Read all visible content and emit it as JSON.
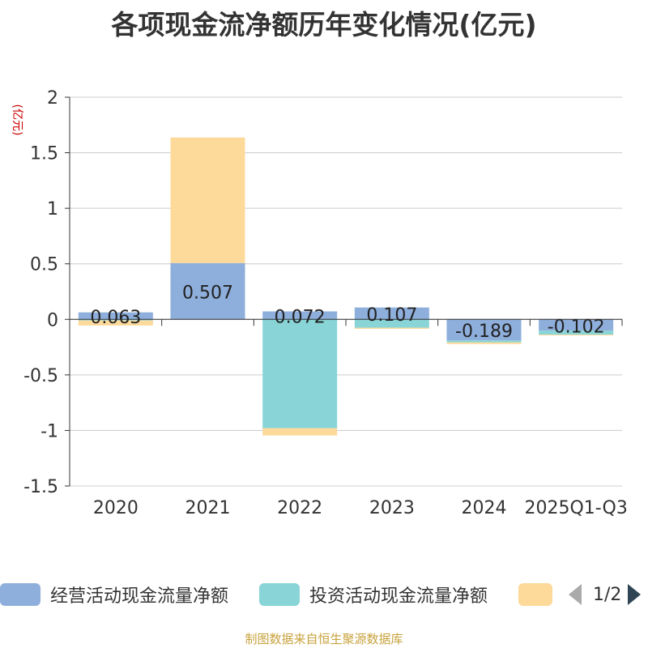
{
  "title": "各项现金流净额历年变化情况(亿元)",
  "unit_label": "(亿元)",
  "source": "制图数据来自恒生聚源数据库",
  "legend": {
    "items": [
      {
        "label": "经营活动现金流量净额",
        "color": "#8eaedb"
      },
      {
        "label": "投资活动现金流量净额",
        "color": "#88d4d6"
      },
      {
        "label": "",
        "color": "#fdd99a"
      }
    ],
    "page": "1/2"
  },
  "chart_data": {
    "type": "bar",
    "stacked": true,
    "categories": [
      "2020",
      "2021",
      "2022",
      "2023",
      "2024",
      "2025Q1-Q3"
    ],
    "ylim": [
      -1.5,
      2
    ],
    "yticks": [
      2,
      1.5,
      1,
      0.5,
      0,
      -0.5,
      -1,
      -1.5
    ],
    "ytick_labels": [
      "2",
      "1.5",
      "1",
      "0.5",
      "0",
      "-0.5",
      "-1",
      "-1.5"
    ],
    "grid": true,
    "series": [
      {
        "name": "经营活动现金流量净额",
        "color": "#8eaedb",
        "values": [
          0.063,
          0.507,
          0.072,
          0.107,
          -0.189,
          -0.102
        ],
        "labels": [
          "0.063",
          "0.507",
          "0.072",
          "0.107",
          "-0.189",
          "-0.102"
        ]
      },
      {
        "name": "投资活动现金流量净额",
        "color": "#88d4d6",
        "values": [
          -0.01,
          0,
          -0.98,
          -0.075,
          -0.018,
          -0.035
        ]
      },
      {
        "name": "",
        "color": "#fdd99a",
        "values": [
          -0.045,
          1.13,
          -0.065,
          -0.01,
          -0.015,
          -0.005
        ]
      }
    ]
  }
}
